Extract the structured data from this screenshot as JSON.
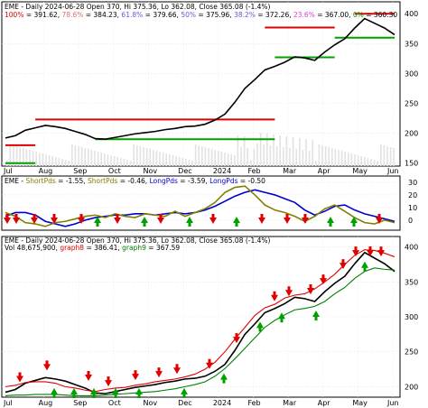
{
  "chart_data": [
    {
      "type": "line",
      "ticker": "EME",
      "header": {
        "title": "EME - Daily 2024-06-28 Open 370, Hi 375.36, Lo 362.08, Close 365.08 (-1.4%)",
        "fib_levels": [
          {
            "label": "100%",
            "value": "391.62",
            "color": "#e00000"
          },
          {
            "label": "78.6%",
            "value": "384.23",
            "color": "#e07070"
          },
          {
            "label": "61.8%",
            "value": "379.66",
            "color": "#6060e0"
          },
          {
            "label": "50%",
            "value": "375.96",
            "color": "#6060e0"
          },
          {
            "label": "38.2%",
            "value": "372.26",
            "color": "#6060e0"
          },
          {
            "label": "23.6%",
            "value": "367.00",
            "color": "#e040e0"
          },
          {
            "label": "0%",
            "value": "360.30",
            "color": "#00a000"
          }
        ]
      },
      "ylim": [
        145,
        420
      ],
      "y_ticks": [
        150,
        200,
        250,
        300,
        350,
        400
      ],
      "x_labels": [
        "Jul",
        "Aug",
        "Sep",
        "Oct",
        "Nov",
        "Dec",
        "2024",
        "Feb",
        "Mar",
        "Apr",
        "May",
        "Jun"
      ],
      "series": [
        {
          "values": [
            192,
            196,
            205,
            209,
            213,
            211,
            208,
            203,
            198,
            191,
            190,
            193,
            196,
            199,
            201,
            203,
            206,
            208,
            211,
            212,
            215,
            222,
            232,
            252,
            275,
            290,
            306,
            312,
            319,
            328,
            326,
            322,
            336,
            348,
            358,
            376,
            392,
            384,
            376,
            365
          ]
        }
      ],
      "resistance_lines": [
        {
          "y": 180,
          "x_start": 0,
          "x_end": 3,
          "color": "#e00000"
        },
        {
          "y": 223,
          "x_start": 3,
          "x_end": 27,
          "color": "#e00000"
        },
        {
          "y": 377,
          "x_start": 26,
          "x_end": 33,
          "color": "#e00000"
        },
        {
          "y": 400,
          "x_start": 35,
          "x_end": 40,
          "color": "#e00000"
        }
      ],
      "support_lines": [
        {
          "y": 150,
          "x_start": 0,
          "x_end": 3,
          "color": "#00a000"
        },
        {
          "y": 190,
          "x_start": 9,
          "x_end": 27,
          "color": "#00a000"
        },
        {
          "y": 327,
          "x_start": 27,
          "x_end": 33,
          "color": "#00a000"
        },
        {
          "y": 360,
          "x_start": 33,
          "x_end": 40,
          "color": "#00a000"
        }
      ]
    },
    {
      "type": "line",
      "header": {
        "ticker": "EME",
        "items": [
          {
            "label": "ShortPds",
            "value": "= -1.55,",
            "color": "#808000"
          },
          {
            "label": "ShortPds",
            "value": "= -0.46,",
            "color": "#808000"
          },
          {
            "label": "LongPds",
            "value": "= -3.59,",
            "color": "#0000d0"
          },
          {
            "label": "LongPds",
            "value": "= -0.50",
            "color": "#0000d0"
          }
        ]
      },
      "ylim": [
        -8,
        35
      ],
      "y_ticks": [
        0,
        10,
        20,
        30
      ],
      "series": [
        {
          "name": "LongPds",
          "color": "#0000d0",
          "values": [
            3,
            6,
            6,
            4,
            -1,
            -3,
            -5,
            -3,
            0,
            2,
            3,
            4,
            4,
            5,
            5,
            4,
            5,
            6,
            5,
            6,
            8,
            11,
            15,
            19,
            22,
            24,
            22,
            20,
            17,
            14,
            8,
            4,
            7,
            11,
            12,
            8,
            5,
            3,
            1,
            -1
          ]
        },
        {
          "name": "ShortPds",
          "color": "#808000",
          "values": [
            6,
            3,
            -2,
            -3,
            -5,
            -2,
            -1,
            1,
            3,
            4,
            2,
            5,
            3,
            2,
            5,
            4,
            3,
            7,
            3,
            6,
            9,
            14,
            22,
            26,
            27,
            20,
            12,
            8,
            6,
            3,
            -1,
            3,
            9,
            12,
            7,
            2,
            -2,
            -3,
            0,
            -2
          ]
        }
      ]
    },
    {
      "type": "line",
      "header": {
        "volume": "Vol 48,675,900",
        "items": [
          {
            "label": "graph8",
            "value": "= 386.41,",
            "color": "#e00000"
          },
          {
            "label": "graph9",
            "value": "= 367.59",
            "color": "#008000"
          }
        ]
      },
      "ylim": [
        185,
        415
      ],
      "y_ticks": [
        200,
        250,
        300,
        350,
        400
      ],
      "series": [
        {
          "name": "Close",
          "color": "#000000",
          "values": [
            192,
            196,
            205,
            209,
            213,
            211,
            208,
            203,
            198,
            191,
            190,
            193,
            196,
            199,
            201,
            203,
            206,
            208,
            211,
            212,
            215,
            222,
            232,
            252,
            275,
            290,
            306,
            312,
            319,
            328,
            326,
            322,
            336,
            348,
            358,
            376,
            392,
            384,
            376,
            365
          ]
        },
        {
          "name": "graph8",
          "color": "#e00000",
          "values": [
            200,
            202,
            206,
            207,
            207,
            205,
            200,
            198,
            195,
            193,
            196,
            198,
            199,
            202,
            204,
            207,
            209,
            211,
            214,
            218,
            225,
            235,
            250,
            268,
            285,
            302,
            313,
            318,
            327,
            331,
            333,
            340,
            350,
            361,
            375,
            388,
            396,
            395,
            391,
            386
          ]
        },
        {
          "name": "graph9",
          "color": "#008000",
          "values": [
            187,
            188,
            188,
            189,
            189,
            189,
            188,
            187,
            187,
            187,
            188,
            189,
            190,
            191,
            192,
            193,
            195,
            197,
            200,
            203,
            207,
            215,
            226,
            240,
            255,
            270,
            285,
            295,
            303,
            310,
            312,
            315,
            322,
            333,
            342,
            355,
            365,
            370,
            368,
            367
          ]
        }
      ]
    }
  ]
}
